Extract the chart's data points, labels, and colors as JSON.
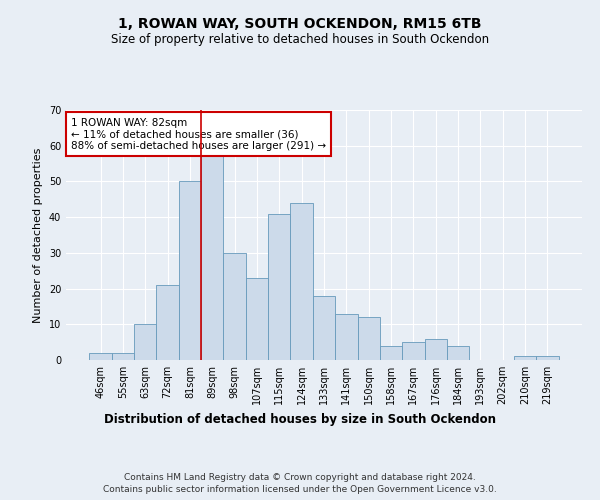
{
  "title1": "1, ROWAN WAY, SOUTH OCKENDON, RM15 6TB",
  "title2": "Size of property relative to detached houses in South Ockendon",
  "xlabel": "Distribution of detached houses by size in South Ockendon",
  "ylabel": "Number of detached properties",
  "categories": [
    "46sqm",
    "55sqm",
    "63sqm",
    "72sqm",
    "81sqm",
    "89sqm",
    "98sqm",
    "107sqm",
    "115sqm",
    "124sqm",
    "133sqm",
    "141sqm",
    "150sqm",
    "158sqm",
    "167sqm",
    "176sqm",
    "184sqm",
    "193sqm",
    "202sqm",
    "210sqm",
    "219sqm"
  ],
  "values": [
    2,
    2,
    10,
    21,
    50,
    58,
    30,
    23,
    41,
    44,
    18,
    13,
    12,
    4,
    5,
    6,
    4,
    0,
    0,
    1,
    1
  ],
  "bar_color": "#ccdaea",
  "bar_edge_color": "#6699bb",
  "bar_edge_width": 0.6,
  "red_line_index": 4.5,
  "annotation_text": "1 ROWAN WAY: 82sqm\n← 11% of detached houses are smaller (36)\n88% of semi-detached houses are larger (291) →",
  "annotation_box_color": "white",
  "annotation_box_edge_color": "#cc0000",
  "ylim": [
    0,
    70
  ],
  "yticks": [
    0,
    10,
    20,
    30,
    40,
    50,
    60,
    70
  ],
  "footer1": "Contains HM Land Registry data © Crown copyright and database right 2024.",
  "footer2": "Contains public sector information licensed under the Open Government Licence v3.0.",
  "background_color": "#e8eef5",
  "plot_bg_color": "#e8eef5",
  "grid_color": "white",
  "title_fontsize": 10,
  "subtitle_fontsize": 8.5,
  "ylabel_fontsize": 8,
  "xlabel_fontsize": 8.5,
  "tick_fontsize": 7,
  "annotation_fontsize": 7.5,
  "footer_fontsize": 6.5
}
